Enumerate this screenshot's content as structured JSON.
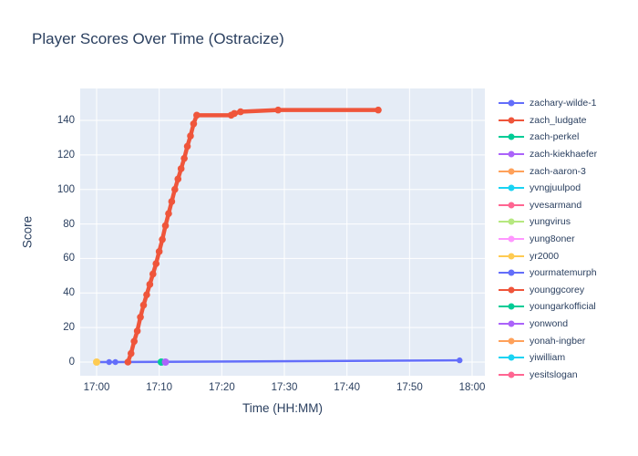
{
  "chart": {
    "title": "Player Scores Over Time (Ostracize)",
    "xlabel": "Time (HH:MM)",
    "ylabel": "Score"
  },
  "colors": {
    "background": "#ffffff",
    "plot_background": "#E5ECF6",
    "gridline": "#ffffff",
    "text": "#2a3f5f"
  },
  "legend": [
    {
      "label": "zachary-wilde-1",
      "color": "#636EFA"
    },
    {
      "label": "zach_ludgate",
      "color": "#EF553B"
    },
    {
      "label": "zach-perkel",
      "color": "#00CC96"
    },
    {
      "label": "zach-kiekhaefer",
      "color": "#AB63FA"
    },
    {
      "label": "zach-aaron-3",
      "color": "#FFA15A"
    },
    {
      "label": "yvngjuulpod",
      "color": "#19D3F3"
    },
    {
      "label": "yvesarmand",
      "color": "#FF6692"
    },
    {
      "label": "yungvirus",
      "color": "#B6E880"
    },
    {
      "label": "yung8oner",
      "color": "#FF97FF"
    },
    {
      "label": "yr2000",
      "color": "#FECB52"
    },
    {
      "label": "yourmatemurph",
      "color": "#636EFA"
    },
    {
      "label": "younggcorey",
      "color": "#EF553B"
    },
    {
      "label": "youngarkofficial",
      "color": "#00CC96"
    },
    {
      "label": "yonwond",
      "color": "#AB63FA"
    },
    {
      "label": "yonah-ingber",
      "color": "#FFA15A"
    },
    {
      "label": "yiwilliam",
      "color": "#19D3F3"
    },
    {
      "label": "yesitslogan",
      "color": "#FF6692"
    }
  ],
  "chart_data": {
    "type": "line",
    "title": "Player Scores Over Time (Ostracize)",
    "xlabel": "Time (HH:MM)",
    "ylabel": "Score",
    "x_ticks": [
      "17:00",
      "17:10",
      "17:20",
      "17:30",
      "17:40",
      "17:50",
      "18:00"
    ],
    "y_ticks": [
      0,
      20,
      40,
      60,
      80,
      100,
      120,
      140
    ],
    "xlim_minutes_from_1700": [
      -2.6,
      62.0
    ],
    "ylim": [
      -8,
      155
    ],
    "grid": true,
    "legend_position": "right",
    "series": [
      {
        "name": "zachary-wilde-1",
        "color": "#636EFA",
        "line_width": 2.5,
        "marker_radius": 3.2,
        "points": [
          [
            "17:00:00",
            0
          ],
          [
            "17:02:00",
            0
          ],
          [
            "17:03:00",
            0
          ],
          [
            "17:58:00",
            1
          ]
        ]
      },
      {
        "name": "zach_ludgate",
        "color": "#EF553B",
        "line_width": 4.5,
        "marker_radius": 3.8,
        "points": [
          [
            "17:05:00",
            0
          ],
          [
            "17:05:30",
            5
          ],
          [
            "17:06:00",
            12
          ],
          [
            "17:06:30",
            18
          ],
          [
            "17:07:00",
            26
          ],
          [
            "17:07:30",
            33
          ],
          [
            "17:08:00",
            39
          ],
          [
            "17:08:30",
            45
          ],
          [
            "17:09:00",
            51
          ],
          [
            "17:09:30",
            57
          ],
          [
            "17:10:00",
            64
          ],
          [
            "17:10:30",
            71
          ],
          [
            "17:11:00",
            79
          ],
          [
            "17:11:30",
            86
          ],
          [
            "17:12:00",
            93
          ],
          [
            "17:12:30",
            100
          ],
          [
            "17:13:00",
            106
          ],
          [
            "17:13:30",
            112
          ],
          [
            "17:14:00",
            118
          ],
          [
            "17:14:30",
            125
          ],
          [
            "17:15:00",
            131
          ],
          [
            "17:15:30",
            138
          ],
          [
            "17:16:00",
            143
          ],
          [
            "17:21:30",
            143
          ],
          [
            "17:22:00",
            144
          ],
          [
            "17:23:00",
            145
          ],
          [
            "17:29:00",
            146
          ],
          [
            "17:45:00",
            146
          ]
        ]
      },
      {
        "name": "zach-perkel",
        "color": "#00CC96",
        "line_width": 2.5,
        "marker_radius": 4,
        "points": [
          [
            "17:10:20",
            0
          ]
        ]
      },
      {
        "name": "zach-kiekhaefer",
        "color": "#AB63FA",
        "line_width": 2.5,
        "marker_radius": 4,
        "points": [
          [
            "17:11:00",
            0
          ]
        ]
      },
      {
        "name": "yr2000",
        "color": "#FECB52",
        "line_width": 2.5,
        "marker_radius": 4,
        "points": [
          [
            "17:00:00",
            0
          ]
        ]
      }
    ]
  }
}
